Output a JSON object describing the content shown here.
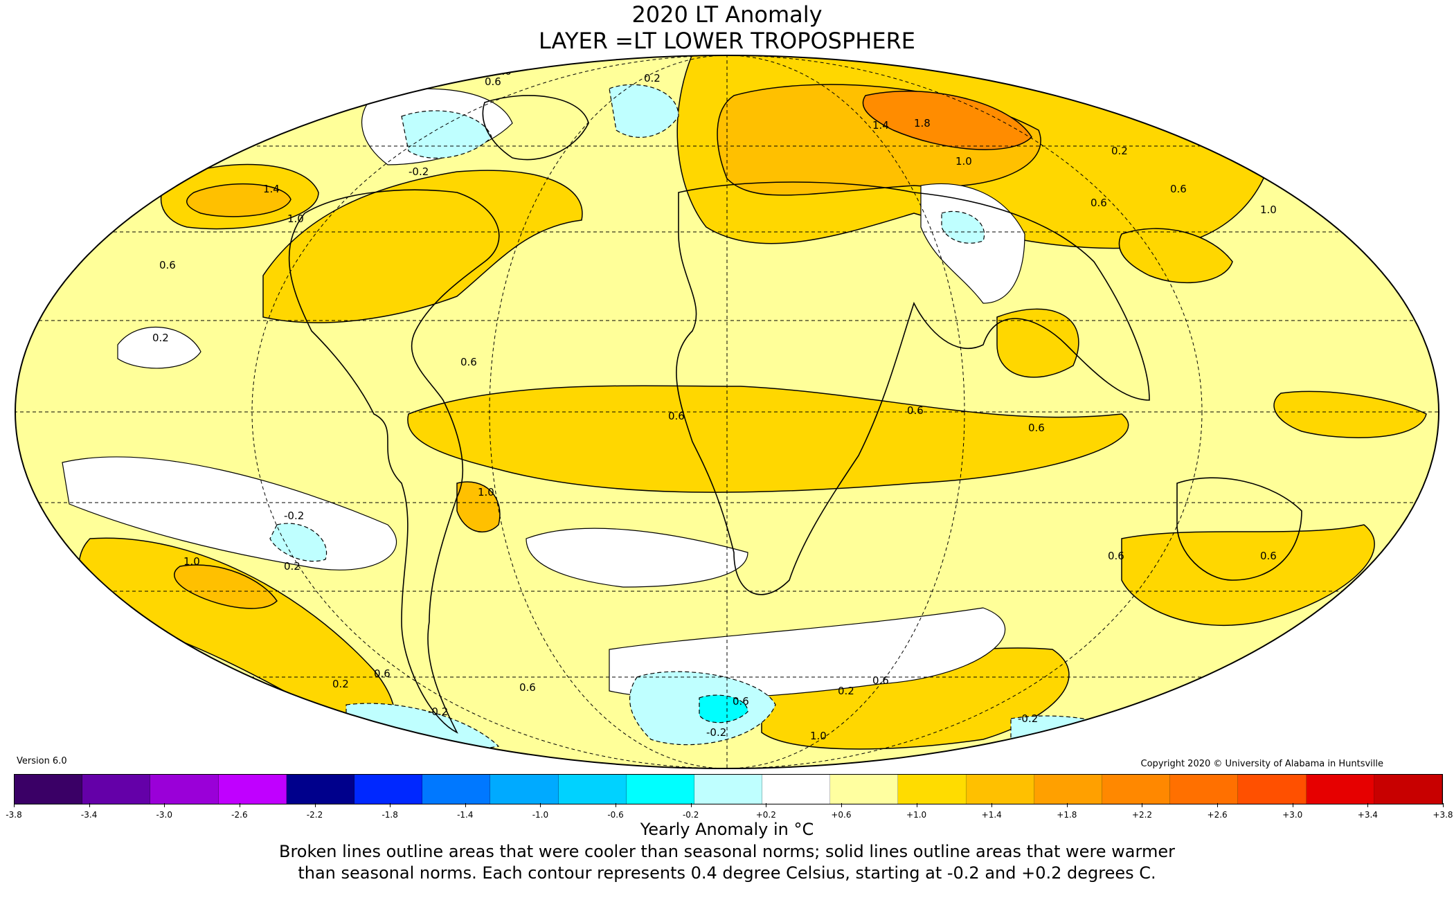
{
  "title_line1": "2020 LT Anomaly",
  "title_line2": "LAYER =LT LOWER TROPOSPHERE",
  "version": "Version 6.0",
  "copyright": "Copyright 2020 © University of Alabama in Huntsville",
  "colorbar": {
    "colors": [
      "#3a0066",
      "#6400a8",
      "#9a00d8",
      "#c000ff",
      "#00008c",
      "#0028ff",
      "#0078ff",
      "#00aaff",
      "#00d2ff",
      "#00ffff",
      "#bfffff",
      "#ffffff",
      "#ffffa0",
      "#ffdc00",
      "#ffc000",
      "#ffa000",
      "#ff8800",
      "#ff7000",
      "#ff5000",
      "#e60000",
      "#c80000"
    ],
    "tick_labels": [
      "-3.8",
      "-3.4",
      "-3.0",
      "-2.6",
      "-2.2",
      "-1.8",
      "-1.4",
      "-1.0",
      "-0.6",
      "-0.2",
      "+0.2",
      "+0.6",
      "+1.0",
      "+1.4",
      "+1.8",
      "+2.2",
      "+2.6",
      "+3.0",
      "+3.4",
      "+3.8"
    ]
  },
  "unit_label": "Yearly Anomaly in  °C",
  "note_line1": "Broken lines outline areas that were cooler than seasonal norms; solid lines outline areas that were warmer",
  "note_line2": "than seasonal norms. Each contour represents 0.4 degree Celsius, starting at -0.2 and +0.2 degrees C.",
  "contour_labels": [
    "1.0",
    "0.6",
    "0.2",
    "0.6",
    "1.4",
    "1.8",
    "1.0",
    "0.2",
    "0.6",
    "0.6",
    "1.0",
    "-0.2",
    "1.4",
    "1.0",
    "0.6",
    "0.2",
    "0.6",
    "0.6",
    "0.6",
    "1.0",
    "-0.2",
    "0.2",
    "1.0",
    "0.6",
    "0.6",
    "0.2",
    "0.6",
    "-0.2",
    "0.2",
    "0.6",
    "1.0",
    "-0.2",
    "0.6",
    "-0.2",
    "0.6",
    "0.6"
  ]
}
